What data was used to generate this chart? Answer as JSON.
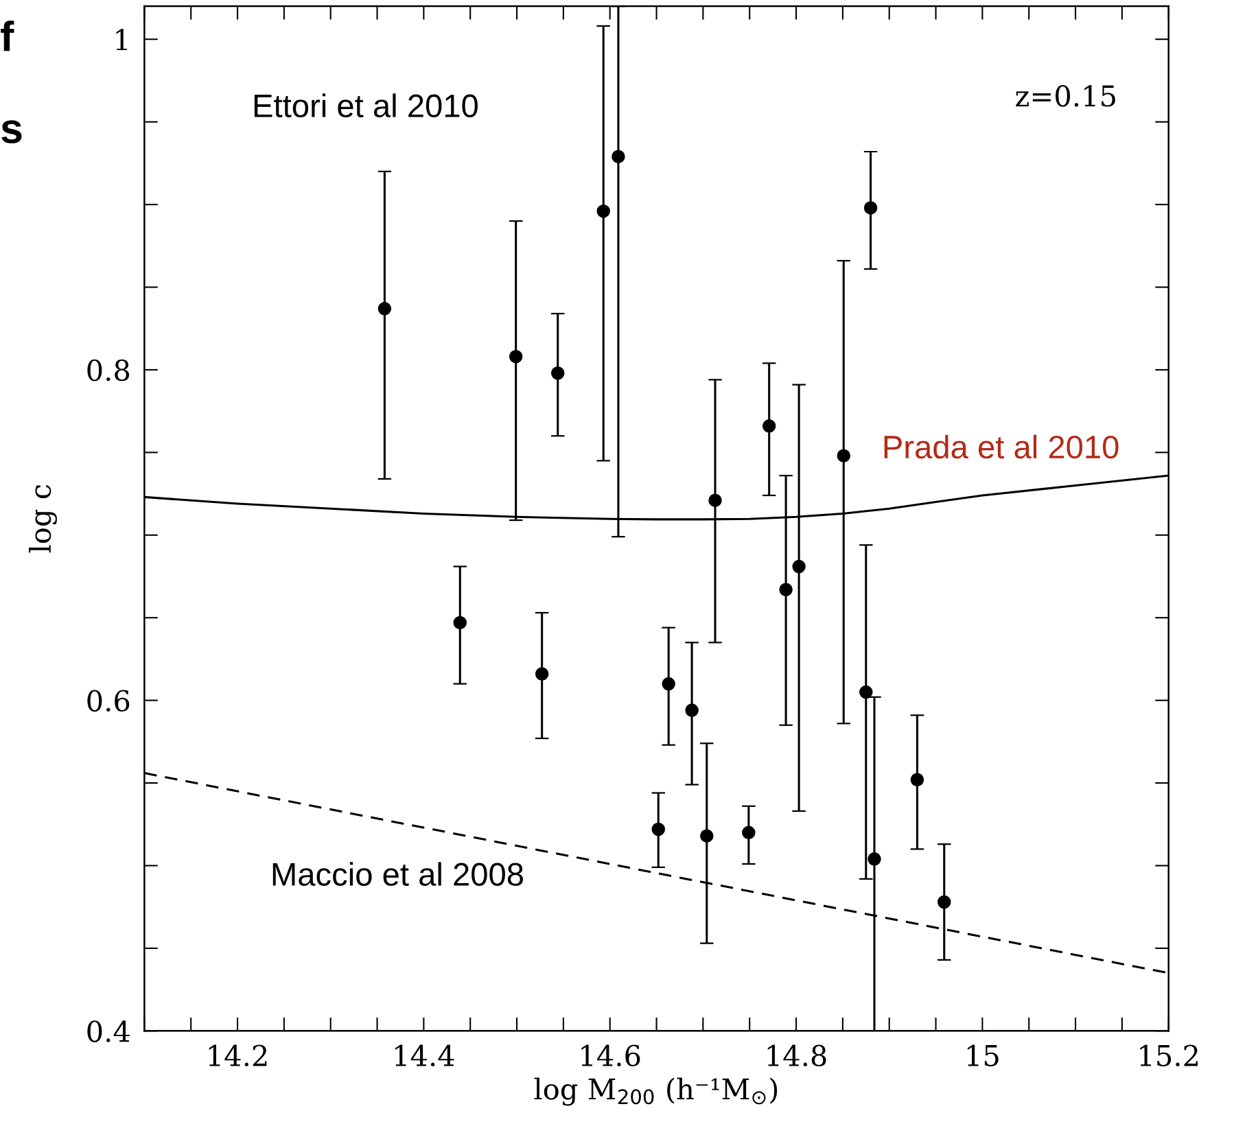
{
  "chart_data": {
    "type": "scatter",
    "xlabel": "log M$_{200}$ (h⁻¹M$_{⊙}$)",
    "ylabel": "log c",
    "xlim": [
      14.1,
      15.2
    ],
    "ylim": [
      0.4,
      1.02
    ],
    "xticks": [
      14.2,
      14.4,
      14.6,
      14.8,
      15,
      15.2
    ],
    "yticks": [
      0.4,
      0.6,
      0.8,
      1
    ],
    "grid": false,
    "marker": "circle",
    "series": [
      {
        "color": "#000000",
        "x": [
          14.358,
          14.439,
          14.499,
          14.527,
          14.544,
          14.593,
          14.609,
          14.652,
          14.663,
          14.688,
          14.704,
          14.713,
          14.749,
          14.771,
          14.789,
          14.803,
          14.851,
          14.875,
          14.88,
          14.884,
          14.93,
          14.959
        ],
        "values": [
          0.837,
          0.647,
          0.808,
          0.616,
          0.798,
          0.896,
          0.929,
          0.522,
          0.61,
          0.594,
          0.518,
          0.721,
          0.52,
          0.766,
          0.667,
          0.681,
          0.748,
          0.605,
          0.898,
          0.504,
          0.552,
          0.478
        ],
        "errors": [
          [
            0.734,
            0.92
          ],
          [
            0.61,
            0.681
          ],
          [
            0.709,
            0.89
          ],
          [
            0.577,
            0.653
          ],
          [
            0.76,
            0.834
          ],
          [
            0.745,
            1.008
          ],
          [
            0.699,
            1.02
          ],
          [
            0.499,
            0.544
          ],
          [
            0.573,
            0.644
          ],
          [
            0.549,
            0.635
          ],
          [
            0.453,
            0.574
          ],
          [
            0.635,
            0.794
          ],
          [
            0.501,
            0.536
          ],
          [
            0.724,
            0.804
          ],
          [
            0.585,
            0.736
          ],
          [
            0.533,
            0.791
          ],
          [
            0.586,
            0.866
          ],
          [
            0.492,
            0.694
          ],
          [
            0.861,
            0.932
          ],
          [
            0.4,
            0.602
          ],
          [
            0.51,
            0.591
          ],
          [
            0.443,
            0.513
          ]
        ]
      },
      {
        "type": "line",
        "color": "#000000",
        "line_style": "solid",
        "marker": "none",
        "x": [
          14.1,
          14.2,
          14.3,
          14.4,
          14.5,
          14.6,
          14.65,
          14.7,
          14.75,
          14.8,
          14.85,
          14.9,
          14.95,
          15.0,
          15.1,
          15.2
        ],
        "values": [
          0.723,
          0.719,
          0.716,
          0.713,
          0.711,
          0.7098,
          0.7095,
          0.7095,
          0.7098,
          0.711,
          0.713,
          0.716,
          0.72,
          0.724,
          0.73,
          0.736
        ]
      },
      {
        "type": "line",
        "color": "#000000",
        "line_style": "dashed",
        "marker": "none",
        "x": [
          14.1,
          15.2
        ],
        "values": [
          0.556,
          0.435
        ]
      }
    ],
    "annotations": [
      "z=0.15",
      "f",
      "s",
      "Ettori et al 2010",
      "Prada et al 2010",
      "Maccio et al 2008"
    ]
  }
}
